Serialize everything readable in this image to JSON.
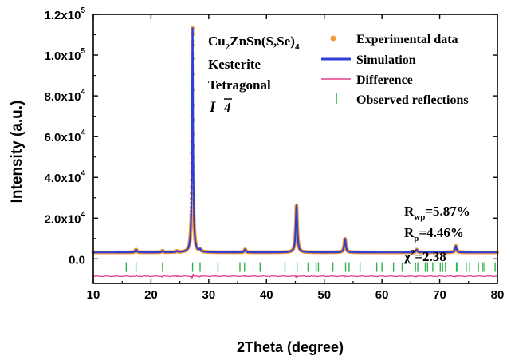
{
  "chart_data": {
    "type": "line",
    "xlabel": "2Theta (degree)",
    "ylabel": "Intensity (a.u.)",
    "xlim": [
      10,
      80
    ],
    "ylim": [
      -12000,
      120000
    ],
    "x_ticks": [
      10,
      20,
      30,
      40,
      50,
      60,
      70,
      80
    ],
    "y_ticks": [
      {
        "value": 0,
        "label": "0.0"
      },
      {
        "value": 20000,
        "label": "2.0x10",
        "exp": "4"
      },
      {
        "value": 40000,
        "label": "4.0x10",
        "exp": "4"
      },
      {
        "value": 60000,
        "label": "6.0x10",
        "exp": "4"
      },
      {
        "value": 80000,
        "label": "8.0x10",
        "exp": "4"
      },
      {
        "value": 100000,
        "label": "1.0x10",
        "exp": "5"
      },
      {
        "value": 120000,
        "label": "1.2x10",
        "exp": "5"
      }
    ],
    "baseline": 3200,
    "difference_offset": -8500,
    "reflection_marks_y": -4000,
    "peaks": [
      {
        "x": 17.4,
        "y": 4500
      },
      {
        "x": 22.0,
        "y": 3900
      },
      {
        "x": 24.5,
        "y": 3700
      },
      {
        "x": 27.2,
        "y": 113500
      },
      {
        "x": 28.5,
        "y": 4300
      },
      {
        "x": 36.3,
        "y": 4600
      },
      {
        "x": 45.2,
        "y": 26000
      },
      {
        "x": 53.6,
        "y": 9800
      },
      {
        "x": 66.0,
        "y": 4500
      },
      {
        "x": 72.8,
        "y": 6300
      }
    ],
    "reflections": [
      15.7,
      17.4,
      22.0,
      27.2,
      28.5,
      31.6,
      35.4,
      36.2,
      38.9,
      43.2,
      45.3,
      47.2,
      48.6,
      49.0,
      51.5,
      53.7,
      54.3,
      56.2,
      59.1,
      60.0,
      62.0,
      63.5,
      65.8,
      66.2,
      67.5,
      67.9,
      68.8,
      70.1,
      70.5,
      71.0,
      72.9,
      73.1,
      74.6,
      75.2,
      76.7,
      77.5,
      77.8,
      79.6
    ],
    "series": [
      {
        "name": "Experimental data",
        "color": "#f39b3c",
        "style": "dots"
      },
      {
        "name": "Simulation",
        "color": "#2f3fd6",
        "style": "line"
      },
      {
        "name": "Difference",
        "color": "#e0408a",
        "style": "line"
      },
      {
        "name": "Observed reflections",
        "color": "#2fb34a",
        "style": "ticks"
      }
    ]
  },
  "annotation": {
    "formula_main": "Cu",
    "formula_sub1": "2",
    "formula_mid": "ZnSn(S,Se)",
    "formula_sub2": "4",
    "line2": "Kesterite",
    "line3": "Tetragonal",
    "space_group_letter": "I",
    "space_group_num": "4"
  },
  "fit_stats": {
    "rwp_label": "R",
    "rwp_sub": "wp",
    "rwp_value": "=5.87%",
    "rp_label": "R",
    "rp_sub": "p",
    "rp_value": "=4.46%",
    "chi_label": "χ",
    "chi_sup": "2",
    "chi_value": "=2.38"
  }
}
